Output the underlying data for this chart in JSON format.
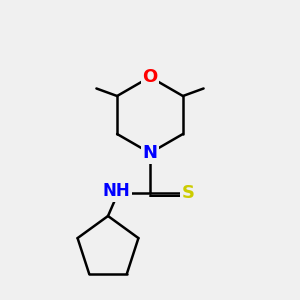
{
  "background_color": "#f0f0f0",
  "line_color": "#000000",
  "atom_colors": {
    "O": "#ff0000",
    "N": "#0000ff",
    "S": "#cccc00",
    "H": "#008080"
  },
  "line_width": 1.8,
  "font_size": 13,
  "figsize": [
    3.0,
    3.0
  ],
  "dpi": 100
}
